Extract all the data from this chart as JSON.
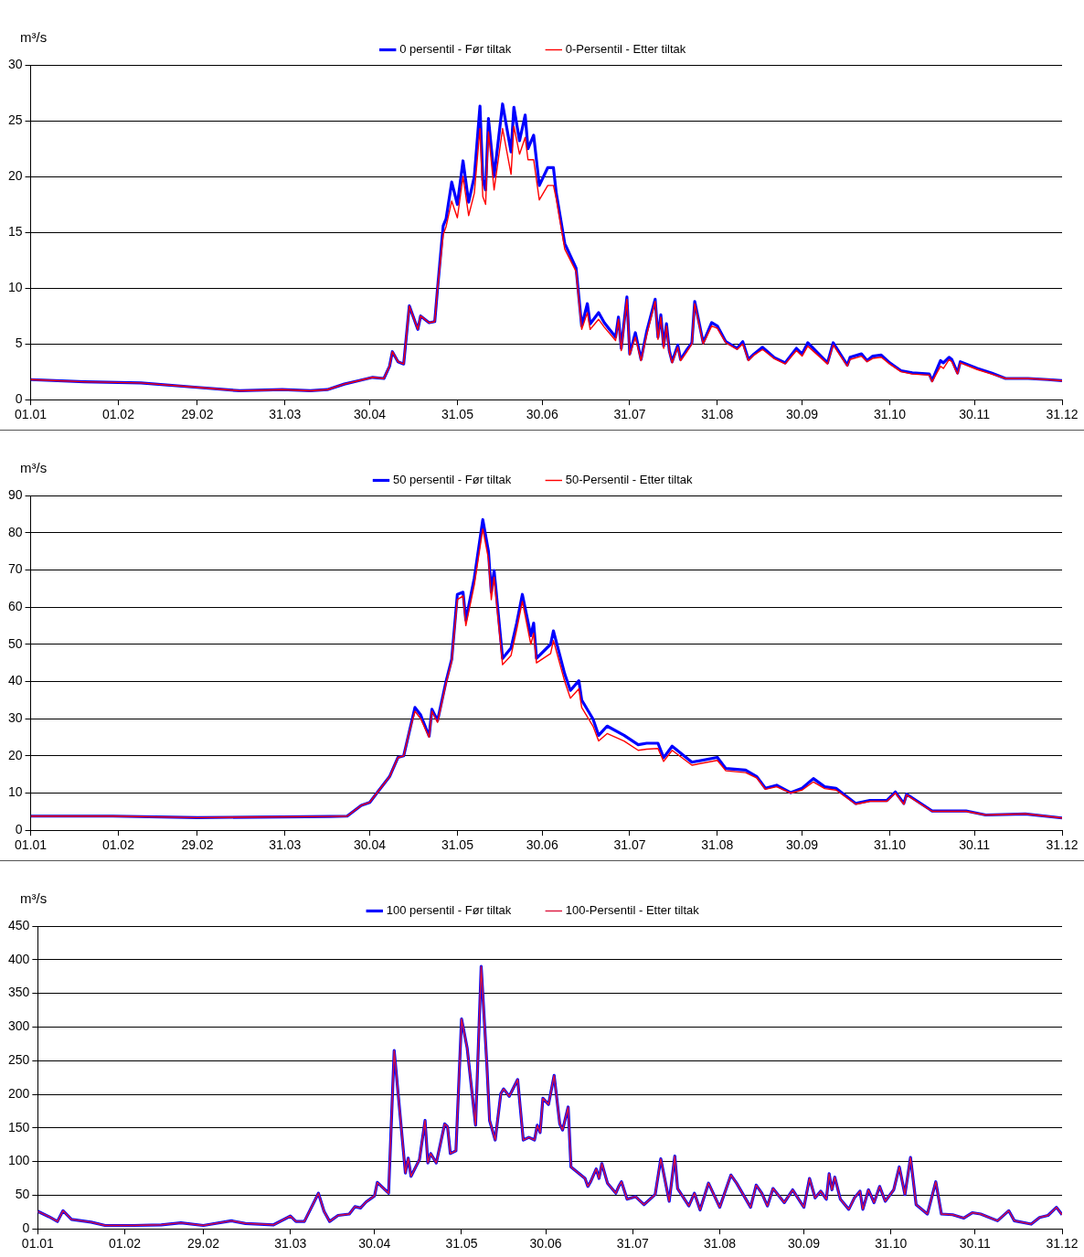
{
  "chart_data": [
    {
      "type": "line",
      "ylabel": "m³/s",
      "legend": "top",
      "grid": "y",
      "marker": "none",
      "xlim": [
        "--01-01",
        "--12-31"
      ],
      "xticks": [
        {
          "value": "--01-01",
          "label": "01.01"
        },
        {
          "value": "--02-01",
          "label": "01.02"
        },
        {
          "value": "--02-29",
          "label": "29.02"
        },
        {
          "value": "--03-31",
          "label": "31.03"
        },
        {
          "value": "--04-30",
          "label": "30.04"
        },
        {
          "value": "--05-31",
          "label": "31.05"
        },
        {
          "value": "--06-30",
          "label": "30.06"
        },
        {
          "value": "--07-31",
          "label": "31.07"
        },
        {
          "value": "--08-31",
          "label": "31.08"
        },
        {
          "value": "--09-30",
          "label": "30.09"
        },
        {
          "value": "--10-31",
          "label": "31.10"
        },
        {
          "value": "--11-30",
          "label": "30.11"
        },
        {
          "value": "--12-31",
          "label": "31.12"
        }
      ],
      "ylim": [
        0,
        30
      ],
      "yticks": [
        0,
        5,
        10,
        15,
        20,
        25,
        30
      ],
      "x": [
        "--01-01",
        "--01-20",
        "--02-09",
        "--02-29",
        "--03-15",
        "--03-30",
        "--04-09",
        "--04-15",
        "--04-21",
        "--04-26",
        "--05-01",
        "--05-05",
        "--05-07",
        "--05-08",
        "--05-10",
        "--05-12",
        "--05-14",
        "--05-17",
        "--05-18",
        "--05-21",
        "--05-23",
        "--05-24",
        "--05-26",
        "--05-27",
        "--05-29",
        "--05-31",
        "--06-02",
        "--06-04",
        "--06-06",
        "--06-08",
        "--06-09",
        "--06-10",
        "--06-11",
        "--06-13",
        "--06-16",
        "--06-19",
        "--06-20",
        "--06-22",
        "--06-24",
        "--06-25",
        "--06-27",
        "--06-29",
        "--07-02",
        "--07-04",
        "--07-05",
        "--07-08",
        "--07-12",
        "--07-14",
        "--07-16",
        "--07-17",
        "--07-20",
        "--07-22",
        "--07-26",
        "--07-27",
        "--07-28",
        "--07-30",
        "--07-31",
        "--08-02",
        "--08-04",
        "--08-06",
        "--08-09",
        "--08-10",
        "--08-11",
        "--08-12",
        "--08-13",
        "--08-14",
        "--08-15",
        "--08-17",
        "--08-18",
        "--08-20",
        "--08-22",
        "--08-23",
        "--08-26",
        "--08-29",
        "--08-31",
        "--09-03",
        "--09-07",
        "--09-09",
        "--09-11",
        "--09-13",
        "--09-16",
        "--09-20",
        "--09-24",
        "--09-28",
        "--09-30",
        "--10-02",
        "--10-09",
        "--10-11",
        "--10-16",
        "--10-17",
        "--10-21",
        "--10-23",
        "--10-25",
        "--10-28",
        "--10-31",
        "--11-04",
        "--11-08",
        "--11-14",
        "--11-15",
        "--11-18",
        "--11-19",
        "--11-21",
        "--11-22",
        "--11-24",
        "--11-25",
        "--12-01",
        "--12-06",
        "--12-11",
        "--12-19",
        "--12-26",
        "--12-31"
      ],
      "series": [
        {
          "name": "0 persentil - Før tiltak",
          "color": "#0000ff",
          "values": [
            1.8,
            1.6,
            1.5,
            1.1,
            0.8,
            0.9,
            0.8,
            0.9,
            1.4,
            1.7,
            2.0,
            1.9,
            3.0,
            4.3,
            3.4,
            3.2,
            8.4,
            6.3,
            7.5,
            6.9,
            7.0,
            10,
            15.6,
            16.2,
            19.5,
            17.5,
            21.4,
            17.7,
            20,
            26.3,
            19.7,
            18.8,
            25.2,
            20,
            26.5,
            22.2,
            26.2,
            23.2,
            25.5,
            22.5,
            23.7,
            19.2,
            20.8,
            20.8,
            18.5,
            14,
            11.8,
            6.6,
            8.6,
            6.8,
            7.8,
            6.9,
            5.6,
            7.4,
            4.6,
            9.2,
            4.1,
            6.0,
            3.6,
            6.1,
            9.0,
            5.6,
            7.6,
            4.8,
            6.8,
            4.4,
            3.4,
            4.9,
            3.6,
            4.4,
            5.1,
            8.8,
            5.1,
            6.9,
            6.6,
            5.2,
            4.6,
            5.2,
            3.6,
            4.1,
            4.7,
            3.8,
            3.3,
            4.6,
            4.1,
            5.1,
            3.3,
            5.1,
            3.1,
            3.8,
            4.1,
            3.5,
            3.9,
            4.0,
            3.3,
            2.6,
            2.4,
            2.3,
            1.7,
            3.5,
            3.3,
            3.8,
            3.6,
            2.4,
            3.4,
            2.8,
            2.4,
            1.9,
            1.9,
            1.8,
            1.7
          ]
        },
        {
          "name": "0-Persentil - Etter tiltak",
          "color": "#ff0000",
          "values": [
            1.8,
            1.6,
            1.5,
            1.1,
            0.8,
            0.9,
            0.8,
            0.9,
            1.4,
            1.7,
            2.0,
            1.9,
            3.0,
            4.3,
            3.4,
            3.2,
            8.4,
            6.3,
            7.5,
            6.9,
            7.0,
            10,
            14.8,
            15.5,
            17.8,
            16.3,
            20,
            16.5,
            18.5,
            24.3,
            18.2,
            17.5,
            24,
            18.8,
            24.3,
            20.2,
            24.5,
            22,
            23.5,
            21.5,
            21.5,
            17.9,
            19.2,
            19.2,
            18,
            13.5,
            11.5,
            6.3,
            7.8,
            6.3,
            7.2,
            6.5,
            5.3,
            7.2,
            4.4,
            9.0,
            4.0,
            5.6,
            3.5,
            5.8,
            8.8,
            5.4,
            7.4,
            4.6,
            6.6,
            4.3,
            3.3,
            4.7,
            3.5,
            4.2,
            5.0,
            8.6,
            5.0,
            6.6,
            6.4,
            5.1,
            4.5,
            5.0,
            3.5,
            4.0,
            4.5,
            3.7,
            3.2,
            4.4,
            3.9,
            4.8,
            3.2,
            4.9,
            3.0,
            3.6,
            3.9,
            3.4,
            3.7,
            3.8,
            3.2,
            2.5,
            2.3,
            2.2,
            1.6,
            3.0,
            2.8,
            3.6,
            3.4,
            2.3,
            3.3,
            2.7,
            2.3,
            1.9,
            1.9,
            1.8,
            1.7
          ]
        }
      ]
    },
    {
      "type": "line",
      "ylabel": "m³/s",
      "legend": "top",
      "grid": "y",
      "marker": "none",
      "xlim": [
        "--01-01",
        "--12-31"
      ],
      "xticks": [
        {
          "value": "--01-01",
          "label": "01.01"
        },
        {
          "value": "--02-01",
          "label": "01.02"
        },
        {
          "value": "--02-29",
          "label": "29.02"
        },
        {
          "value": "--03-31",
          "label": "31.03"
        },
        {
          "value": "--04-30",
          "label": "30.04"
        },
        {
          "value": "--05-31",
          "label": "31.05"
        },
        {
          "value": "--06-30",
          "label": "30.06"
        },
        {
          "value": "--07-31",
          "label": "31.07"
        },
        {
          "value": "--08-31",
          "label": "31.08"
        },
        {
          "value": "--09-30",
          "label": "30.09"
        },
        {
          "value": "--10-31",
          "label": "31.10"
        },
        {
          "value": "--11-30",
          "label": "30.11"
        },
        {
          "value": "--12-31",
          "label": "31.12"
        }
      ],
      "ylim": [
        0,
        90
      ],
      "yticks": [
        0,
        10,
        20,
        30,
        40,
        50,
        60,
        70,
        80,
        90
      ],
      "x": [
        "--01-01",
        "--01-30",
        "--02-29",
        "--03-30",
        "--04-16",
        "--04-22",
        "--04-27",
        "--04-30",
        "--05-03",
        "--05-07",
        "--05-10",
        "--05-12",
        "--05-14",
        "--05-16",
        "--05-18",
        "--05-21",
        "--05-22",
        "--05-24",
        "--05-27",
        "--05-29",
        "--05-31",
        "--06-02",
        "--06-03",
        "--06-06",
        "--06-09",
        "--06-11",
        "--06-12",
        "--06-13",
        "--06-16",
        "--06-19",
        "--06-21",
        "--06-23",
        "--06-26",
        "--06-27",
        "--06-28",
        "--07-03",
        "--07-04",
        "--07-08",
        "--07-10",
        "--07-13",
        "--07-14",
        "--07-18",
        "--07-20",
        "--07-23",
        "--07-29",
        "--08-03",
        "--08-06",
        "--08-10",
        "--08-12",
        "--08-15",
        "--08-22",
        "--08-31",
        "--09-03",
        "--09-10",
        "--09-14",
        "--09-17",
        "--09-21",
        "--09-26",
        "--09-30",
        "--10-04",
        "--10-08",
        "--10-12",
        "--10-19",
        "--10-24",
        "--10-30",
        "--11-02",
        "--11-05",
        "--11-06",
        "--11-15",
        "--11-27",
        "--12-04",
        "--12-18",
        "--12-31"
      ],
      "series": [
        {
          "name": "50 persentil - Før tiltak",
          "color": "#0000ff",
          "values": [
            3.8,
            3.8,
            3.4,
            3.6,
            3.7,
            3.8,
            6.7,
            7.5,
            10.5,
            14.4,
            19.6,
            20,
            26.5,
            33,
            31,
            25.3,
            32.5,
            29.5,
            40,
            46,
            63.4,
            64,
            56.5,
            67.8,
            83.5,
            75,
            64,
            69.8,
            46.2,
            49,
            55.7,
            63.4,
            52.3,
            55.7,
            46.2,
            50,
            53.6,
            42,
            37.6,
            40.2,
            35,
            29.9,
            25.5,
            28,
            25.5,
            23,
            23.4,
            23.4,
            19.5,
            22.6,
            18.3,
            19.6,
            16.6,
            16.2,
            14.4,
            11.3,
            12.1,
            10.1,
            11.3,
            13.9,
            11.7,
            11.3,
            7.2,
            8.0,
            8.0,
            10.3,
            7.2,
            9.7,
            5.2,
            5.2,
            4.1,
            4.4,
            3.3
          ]
        },
        {
          "name": "50-Persentil - Etter tiltak",
          "color": "#ff0000",
          "values": [
            3.8,
            3.8,
            3.4,
            3.6,
            3.7,
            3.8,
            6.7,
            7.5,
            10.5,
            14.4,
            19.6,
            20,
            26.5,
            32,
            30,
            25,
            32,
            29,
            39.5,
            45.5,
            62,
            63,
            55,
            66,
            81,
            73,
            62,
            68,
            44.5,
            47,
            54,
            61.5,
            50,
            53,
            45,
            47.5,
            51,
            40,
            35.5,
            38,
            33,
            28,
            24,
            26,
            24,
            21.5,
            21.8,
            22,
            18.5,
            21.5,
            17.5,
            18.8,
            16,
            15.5,
            14,
            11,
            11.7,
            10,
            10.8,
            13,
            11.2,
            10.8,
            7,
            7.8,
            7.8,
            10,
            7,
            9.5,
            5.1,
            5.1,
            4.1,
            4.4,
            3.3
          ]
        }
      ]
    },
    {
      "type": "line",
      "ylabel": "m³/s",
      "legend": "top",
      "grid": "y",
      "marker": "none",
      "xlim": [
        "--01-01",
        "--12-31"
      ],
      "xticks": [
        {
          "value": "--01-01",
          "label": "01.01"
        },
        {
          "value": "--02-01",
          "label": "01.02"
        },
        {
          "value": "--02-29",
          "label": "29.02"
        },
        {
          "value": "--03-31",
          "label": "31.03"
        },
        {
          "value": "--04-30",
          "label": "30.04"
        },
        {
          "value": "--05-31",
          "label": "31.05"
        },
        {
          "value": "--06-30",
          "label": "30.06"
        },
        {
          "value": "--07-31",
          "label": "31.07"
        },
        {
          "value": "--08-31",
          "label": "31.08"
        },
        {
          "value": "--09-30",
          "label": "30.09"
        },
        {
          "value": "--10-31",
          "label": "31.10"
        },
        {
          "value": "--11-30",
          "label": "30.11"
        },
        {
          "value": "--12-31",
          "label": "31.12"
        }
      ],
      "ylim": [
        0,
        450
      ],
      "yticks": [
        0,
        50,
        100,
        150,
        200,
        250,
        300,
        350,
        400,
        450
      ],
      "x": [
        "--01-01",
        "--01-05",
        "--01-08",
        "--01-10",
        "--01-13",
        "--01-20",
        "--01-25",
        "--02-04",
        "--02-14",
        "--02-21",
        "--02-29",
        "--03-10",
        "--03-15",
        "--03-25",
        "--03-31",
        "--04-02",
        "--04-05",
        "--04-10",
        "--04-12",
        "--04-14",
        "--04-17",
        "--04-21",
        "--04-23",
        "--04-25",
        "--04-27",
        "--04-30",
        "--05-01",
        "--05-05",
        "--05-07",
        "--05-11",
        "--05-12",
        "--05-13",
        "--05-16",
        "--05-18",
        "--05-19",
        "--05-20",
        "--05-22",
        "--05-25",
        "--05-26",
        "--05-27",
        "--05-29",
        "--05-31",
        "--06-02",
        "--06-05",
        "--06-07",
        "--06-09",
        "--06-10",
        "--06-12",
        "--06-14",
        "--06-15",
        "--06-17",
        "--06-20",
        "--06-22",
        "--06-24",
        "--06-26",
        "--06-27",
        "--06-28",
        "--06-29",
        "--07-01",
        "--07-03",
        "--07-05",
        "--07-06",
        "--07-08",
        "--07-09",
        "--07-14",
        "--07-15",
        "--07-16",
        "--07-18",
        "--07-19",
        "--07-20",
        "--07-22",
        "--07-25",
        "--07-26",
        "--07-27",
        "--07-29",
        "--08-01",
        "--08-04",
        "--08-08",
        "--08-10",
        "--08-13",
        "--08-15",
        "--08-16",
        "--08-20",
        "--08-22",
        "--08-24",
        "--08-27",
        "--08-31",
        "--09-04",
        "--09-06",
        "--09-11",
        "--09-13",
        "--09-15",
        "--09-17",
        "--09-19",
        "--09-23",
        "--09-26",
        "--09-30",
        "--10-02",
        "--10-04",
        "--10-06",
        "--10-08",
        "--10-09",
        "--10-10",
        "--10-11",
        "--10-13",
        "--10-16",
        "--10-18",
        "--10-20",
        "--10-21",
        "--10-23",
        "--10-25",
        "--10-27",
        "--10-29",
        "--11-01",
        "--11-03",
        "--11-05",
        "--11-07",
        "--11-09",
        "--11-13",
        "--11-16",
        "--11-18",
        "--11-22",
        "--11-26",
        "--11-29",
        "--12-02",
        "--12-08",
        "--12-12",
        "--12-14",
        "--12-20",
        "--12-23",
        "--12-26",
        "--12-29",
        "--12-31"
      ],
      "series": [
        {
          "name": "100 persentil - Før tiltak",
          "color": "#0000ff",
          "values": [
            26,
            18,
            11,
            27,
            14,
            10,
            5,
            5,
            6,
            9,
            5,
            12,
            8,
            6,
            19,
            11,
            11,
            53,
            26,
            11,
            20,
            22,
            33,
            31,
            40,
            49,
            69,
            53,
            265,
            83,
            105,
            78,
            103,
            161,
            98,
            112,
            98,
            156,
            152,
            112,
            116,
            312,
            269,
            154,
            390,
            246,
            161,
            132,
            201,
            208,
            197,
            222,
            132,
            136,
            132,
            154,
            143,
            194,
            185,
            228,
            156,
            147,
            181,
            92,
            75,
            63,
            70,
            89,
            75,
            97,
            68,
            53,
            63,
            70,
            44,
            48,
            36,
            51,
            104,
            41,
            108,
            60,
            34,
            53,
            28,
            68,
            32,
            80,
            68,
            32,
            65,
            53,
            34,
            60,
            39,
            58,
            32,
            75,
            46,
            56,
            44,
            82,
            58,
            77,
            44,
            29,
            46,
            56,
            29,
            58,
            39,
            63,
            41,
            58,
            92,
            51,
            106,
            36,
            22,
            70,
            22,
            21,
            16,
            24,
            22,
            12,
            27,
            12,
            7,
            17,
            20,
            32,
            21
          ]
        },
        {
          "name": "100-Persentil - Etter tiltak",
          "color": "#dc143c",
          "values": [
            26,
            18,
            11,
            27,
            14,
            10,
            5,
            5,
            6,
            9,
            5,
            12,
            8,
            6,
            19,
            11,
            11,
            53,
            26,
            11,
            20,
            22,
            33,
            31,
            40,
            49,
            69,
            53,
            265,
            83,
            105,
            78,
            103,
            161,
            98,
            112,
            98,
            156,
            152,
            112,
            116,
            312,
            269,
            154,
            390,
            246,
            161,
            132,
            201,
            208,
            197,
            222,
            132,
            136,
            132,
            154,
            143,
            194,
            185,
            228,
            156,
            147,
            181,
            92,
            75,
            63,
            70,
            89,
            75,
            97,
            68,
            53,
            63,
            70,
            44,
            48,
            36,
            51,
            104,
            41,
            108,
            60,
            34,
            53,
            28,
            68,
            32,
            80,
            68,
            32,
            65,
            53,
            34,
            60,
            39,
            58,
            32,
            75,
            46,
            56,
            44,
            82,
            58,
            77,
            44,
            29,
            46,
            56,
            29,
            58,
            39,
            63,
            41,
            58,
            92,
            51,
            106,
            36,
            22,
            70,
            22,
            21,
            16,
            24,
            22,
            12,
            27,
            12,
            7,
            17,
            20,
            32,
            21
          ]
        }
      ]
    }
  ]
}
